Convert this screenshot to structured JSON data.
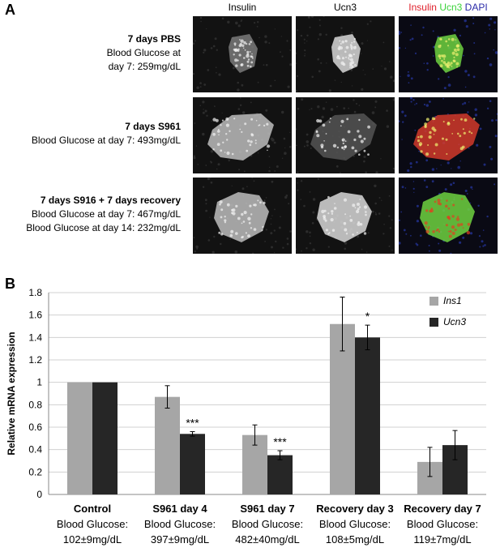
{
  "panelA": {
    "letter": "A",
    "columns": [
      "Insulin",
      "Ucn3",
      "Insulin Ucn3 DAPI"
    ],
    "merge_parts": [
      {
        "text": "Insulin",
        "color": "#e0202c"
      },
      {
        "text": " Ucn3",
        "color": "#3ad23a"
      },
      {
        "text": " DAPI",
        "color": "#2a2aa8"
      }
    ],
    "rows": [
      {
        "title": "7 days PBS",
        "lines": [
          "Blood Glucose at",
          "day 7: 259mg/dL"
        ]
      },
      {
        "title": "7 days S961",
        "lines": [
          "Blood Glucose at day 7: 493mg/dL"
        ]
      },
      {
        "title": "7 days S916 + 7 days recovery",
        "lines": [
          "Blood Glucose  at day 7: 467mg/dL",
          "Blood Glucose at day 14: 232mg/dL"
        ]
      }
    ]
  },
  "panelB": {
    "letter": "B"
  },
  "chart_data": {
    "type": "bar",
    "title": "",
    "ylabel": "Relative mRNA expression",
    "xlabel": "",
    "ylim": [
      0,
      1.8
    ],
    "yticks": [
      "0",
      "0.2",
      "0.4",
      "0.6",
      "0.8",
      "1",
      "1.2",
      "1.4",
      "1.6",
      "1.8"
    ],
    "grid": true,
    "legend_position": "top-right",
    "categories": [
      {
        "name": "Control",
        "sub1": "Blood Glucose:",
        "sub2": "102±9mg/dL"
      },
      {
        "name": "S961 day 4",
        "sub1": "Blood Glucose:",
        "sub2": "397±9mg/dL"
      },
      {
        "name": "S961 day 7",
        "sub1": "Blood Glucose:",
        "sub2": "482±40mg/dL"
      },
      {
        "name": "Recovery day 3",
        "sub1": "Blood Glucose:",
        "sub2": "108±5mg/dL"
      },
      {
        "name": "Recovery day 7",
        "sub1": "Blood Glucose:",
        "sub2": "119±7mg/dL"
      }
    ],
    "series": [
      {
        "name": "Ins1",
        "color": "#a6a6a6",
        "values": [
          1.0,
          0.87,
          0.53,
          1.52,
          0.29
        ],
        "errors": [
          0,
          0.1,
          0.09,
          0.24,
          0.13
        ]
      },
      {
        "name": "Ucn3",
        "color": "#262626",
        "values": [
          1.0,
          0.54,
          0.35,
          1.4,
          0.44
        ],
        "errors": [
          0,
          0.02,
          0.04,
          0.11,
          0.13
        ]
      }
    ],
    "annotations": [
      {
        "category": 1,
        "series": 1,
        "text": "***"
      },
      {
        "category": 2,
        "series": 1,
        "text": "***"
      },
      {
        "category": 3,
        "series": 1,
        "text": "*"
      }
    ]
  }
}
